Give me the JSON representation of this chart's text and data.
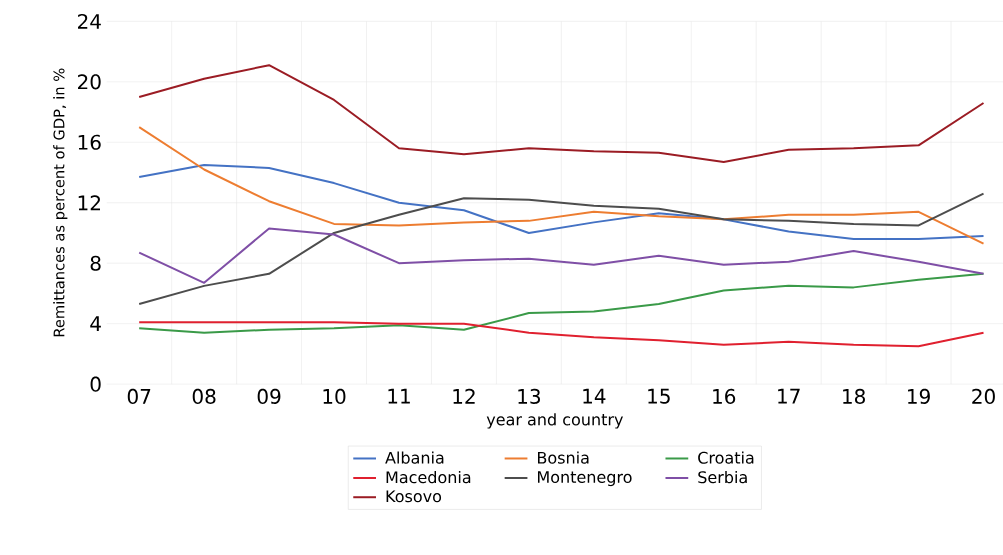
{
  "chart_data": {
    "type": "line",
    "xlabel": "year and country",
    "ylabel": "Remittances as percent of GDP, in %",
    "categories": [
      "07",
      "08",
      "09",
      "10",
      "11",
      "12",
      "13",
      "14",
      "15",
      "16",
      "17",
      "18",
      "19",
      "20"
    ],
    "ylim": [
      0,
      24
    ],
    "yticks": [
      0,
      4,
      8,
      12,
      16,
      20,
      24
    ],
    "grid": true,
    "legend": "bottom",
    "line_style": "solid",
    "marker": "none",
    "series": [
      {
        "name": "Albania",
        "color": "#4472c4",
        "values": [
          13.7,
          14.5,
          14.3,
          13.3,
          12.0,
          11.5,
          10.0,
          10.7,
          11.3,
          10.9,
          10.1,
          9.6,
          9.6,
          9.8
        ]
      },
      {
        "name": "Bosnia",
        "color": "#ed7d31",
        "values": [
          17.0,
          14.2,
          12.1,
          10.6,
          10.5,
          10.7,
          10.8,
          11.4,
          11.1,
          10.9,
          11.2,
          11.2,
          11.4,
          9.3
        ]
      },
      {
        "name": "Croatia",
        "color": "#3a9a48",
        "values": [
          3.7,
          3.4,
          3.6,
          3.7,
          3.9,
          3.6,
          4.7,
          4.8,
          5.3,
          6.2,
          6.5,
          6.4,
          6.9,
          7.3
        ]
      },
      {
        "name": "Macedonia",
        "color": "#e0202f",
        "values": [
          4.1,
          4.1,
          4.1,
          4.1,
          4.0,
          4.0,
          3.4,
          3.1,
          2.9,
          2.6,
          2.8,
          2.6,
          2.5,
          3.4
        ]
      },
      {
        "name": "Montenegro",
        "color": "#4d4d4d",
        "values": [
          5.3,
          6.5,
          7.3,
          10.0,
          11.2,
          12.3,
          12.2,
          11.8,
          11.6,
          10.9,
          10.8,
          10.6,
          10.5,
          12.6
        ]
      },
      {
        "name": "Serbia",
        "color": "#7f4fa6",
        "values": [
          8.7,
          6.7,
          10.3,
          9.9,
          8.0,
          8.2,
          8.3,
          7.9,
          8.5,
          7.9,
          8.1,
          8.8,
          8.1,
          7.3
        ]
      },
      {
        "name": "Kosovo",
        "color": "#9b1c24",
        "values": [
          19.0,
          20.2,
          21.1,
          18.8,
          15.6,
          15.2,
          15.6,
          15.4,
          15.3,
          14.7,
          15.5,
          15.6,
          15.8,
          18.6
        ]
      }
    ]
  }
}
